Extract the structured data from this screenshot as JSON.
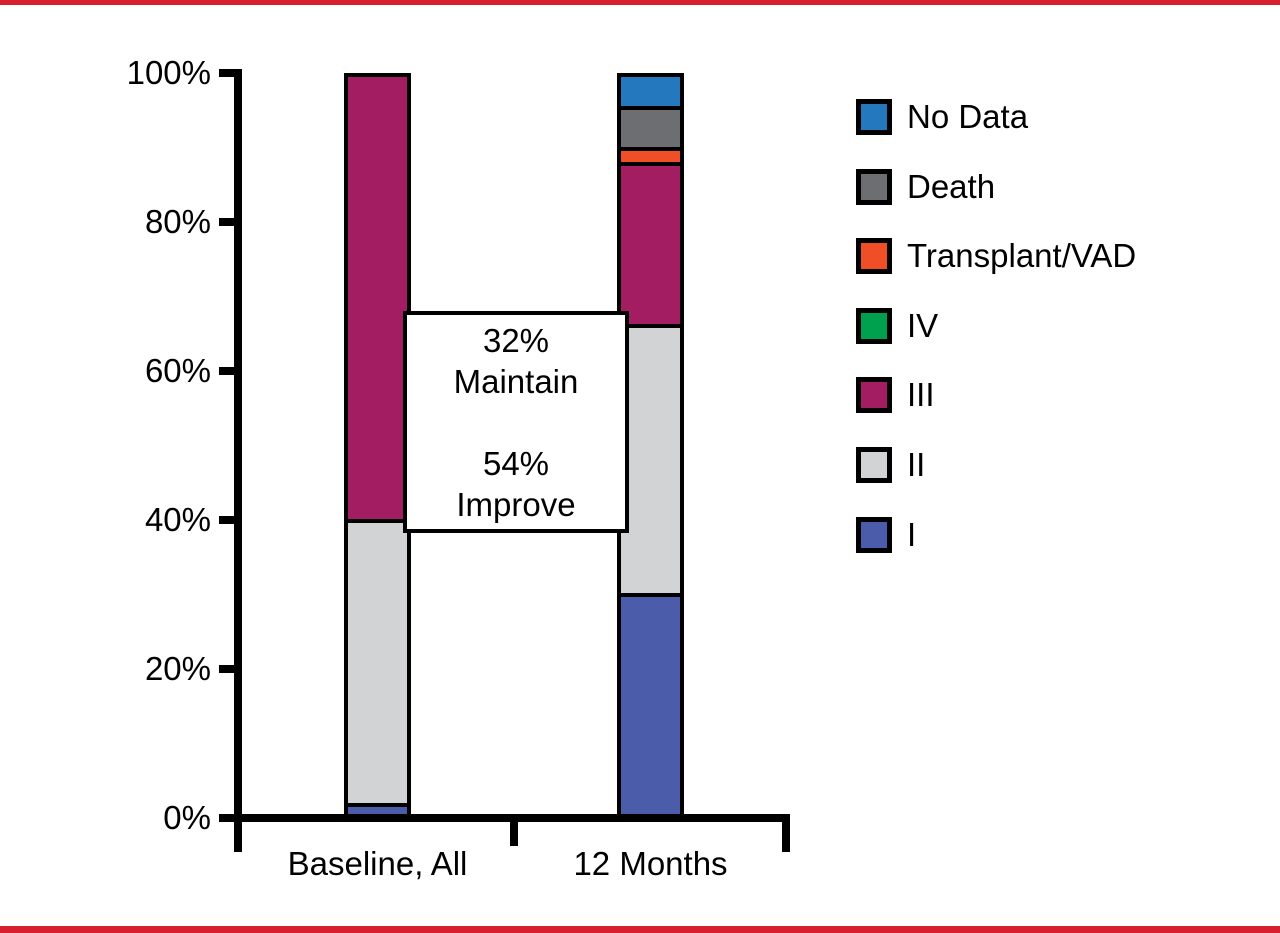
{
  "frame": {
    "border_color": "#d71f2f",
    "background_color": "#ffffff"
  },
  "chart_data": {
    "type": "bar",
    "subtype": "stacked-column",
    "categories": [
      "Baseline, All",
      "12 Months"
    ],
    "series": [
      {
        "name": "I",
        "color": "#4a5caa",
        "values": [
          1.5,
          30
        ]
      },
      {
        "name": "II",
        "color": "#d2d3d5",
        "values": [
          38.5,
          36.5
        ]
      },
      {
        "name": "III",
        "color": "#a21d62",
        "values": [
          60,
          22
        ]
      },
      {
        "name": "IV",
        "color": "#00a14e",
        "values": [
          0,
          0
        ]
      },
      {
        "name": "Transplant/VAD",
        "color": "#f04e26",
        "values": [
          0,
          2
        ]
      },
      {
        "name": "Death",
        "color": "#6d6e71",
        "values": [
          0,
          5.5
        ]
      },
      {
        "name": "No Data",
        "color": "#2478bd",
        "values": [
          0,
          4
        ]
      }
    ],
    "ylim": [
      0,
      100
    ],
    "y_ticks": [
      {
        "pct": 0,
        "label": "0%"
      },
      {
        "pct": 20,
        "label": "20%"
      },
      {
        "pct": 40,
        "label": "40%"
      },
      {
        "pct": 60,
        "label": "60%"
      },
      {
        "pct": 80,
        "label": "80%"
      },
      {
        "pct": 100,
        "label": "100%"
      }
    ],
    "xlabel": "",
    "ylabel": "",
    "grid": false,
    "legend_position": "right",
    "legend_order": [
      "No Data",
      "Death",
      "Transplant/VAD",
      "IV",
      "III",
      "II",
      "I"
    ],
    "annotation": {
      "lines": [
        "32%",
        "Maintain",
        "",
        "54%",
        "Improve"
      ]
    }
  }
}
